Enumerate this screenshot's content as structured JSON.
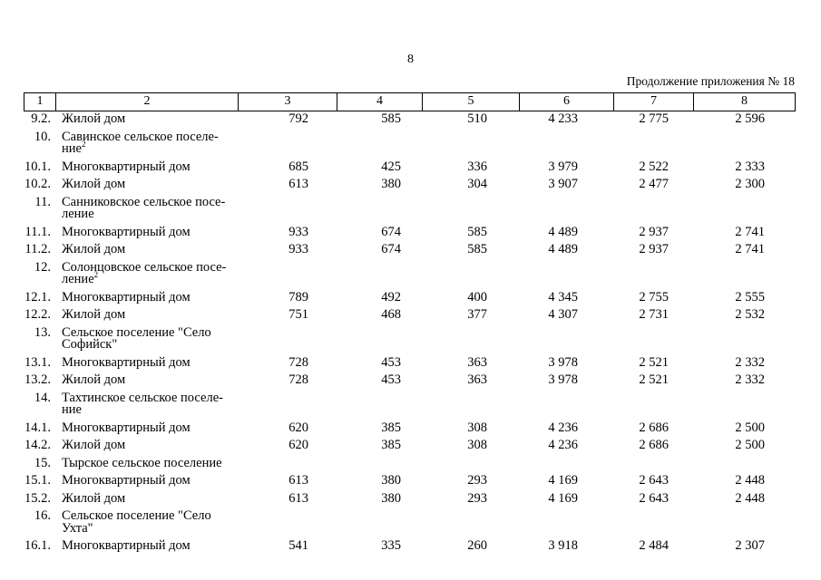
{
  "page": {
    "number": "8",
    "continuation_note": "Продолжение приложения № 18"
  },
  "table": {
    "header_cells": [
      "1",
      "2",
      "3",
      "4",
      "5",
      "6",
      "7",
      "8"
    ],
    "rows": [
      {
        "num": "9.2.",
        "lines": [
          "Жилой дом"
        ],
        "sup": "",
        "values": [
          "792",
          "585",
          "510",
          "4 233",
          "2 775",
          "2 596"
        ]
      },
      {
        "num": "10.",
        "lines": [
          "Савинское сельское поселе-",
          "ние"
        ],
        "sup": "2",
        "values": []
      },
      {
        "num": "10.1.",
        "lines": [
          "Многоквартирный дом"
        ],
        "sup": "",
        "values": [
          "685",
          "425",
          "336",
          "3 979",
          "2 522",
          "2 333"
        ]
      },
      {
        "num": "10.2.",
        "lines": [
          "Жилой дом"
        ],
        "sup": "",
        "values": [
          "613",
          "380",
          "304",
          "3 907",
          "2 477",
          "2 300"
        ]
      },
      {
        "num": "11.",
        "lines": [
          "Санниковское сельское посе-",
          "ление"
        ],
        "sup": "",
        "values": []
      },
      {
        "num": "11.1.",
        "lines": [
          "Многоквартирный дом"
        ],
        "sup": "",
        "values": [
          "933",
          "674",
          "585",
          "4 489",
          "2 937",
          "2 741"
        ]
      },
      {
        "num": "11.2.",
        "lines": [
          "Жилой дом"
        ],
        "sup": "",
        "values": [
          "933",
          "674",
          "585",
          "4 489",
          "2 937",
          "2 741"
        ]
      },
      {
        "num": "12.",
        "lines": [
          "Солонцовское сельское посе-",
          "ление"
        ],
        "sup": "2",
        "values": []
      },
      {
        "num": "12.1.",
        "lines": [
          "Многоквартирный дом"
        ],
        "sup": "",
        "values": [
          "789",
          "492",
          "400",
          "4 345",
          "2 755",
          "2 555"
        ]
      },
      {
        "num": "12.2.",
        "lines": [
          "Жилой дом"
        ],
        "sup": "",
        "values": [
          "751",
          "468",
          "377",
          "4 307",
          "2 731",
          "2 532"
        ]
      },
      {
        "num": "13.",
        "lines": [
          "Сельское поселение \"Село",
          "Софийск\""
        ],
        "sup": "",
        "values": []
      },
      {
        "num": "13.1.",
        "lines": [
          "Многоквартирный дом"
        ],
        "sup": "",
        "values": [
          "728",
          "453",
          "363",
          "3 978",
          "2 521",
          "2 332"
        ]
      },
      {
        "num": "13.2.",
        "lines": [
          "Жилой дом"
        ],
        "sup": "",
        "values": [
          "728",
          "453",
          "363",
          "3 978",
          "2 521",
          "2 332"
        ]
      },
      {
        "num": "14.",
        "lines": [
          "Тахтинское сельское поселе-",
          "ние"
        ],
        "sup": "",
        "values": []
      },
      {
        "num": "14.1.",
        "lines": [
          "Многоквартирный дом"
        ],
        "sup": "",
        "values": [
          "620",
          "385",
          "308",
          "4 236",
          "2 686",
          "2 500"
        ]
      },
      {
        "num": "14.2.",
        "lines": [
          "Жилой дом"
        ],
        "sup": "",
        "values": [
          "620",
          "385",
          "308",
          "4 236",
          "2 686",
          "2 500"
        ]
      },
      {
        "num": "15.",
        "lines": [
          "Тырское сельское поселение"
        ],
        "sup": "",
        "values": []
      },
      {
        "num": "15.1.",
        "lines": [
          "Многоквартирный дом"
        ],
        "sup": "",
        "values": [
          "613",
          "380",
          "293",
          "4 169",
          "2 643",
          "2 448"
        ]
      },
      {
        "num": "15.2.",
        "lines": [
          "Жилой дом"
        ],
        "sup": "",
        "values": [
          "613",
          "380",
          "293",
          "4 169",
          "2 643",
          "2 448"
        ]
      },
      {
        "num": "16.",
        "lines": [
          "Сельское поселение \"Село",
          "Ухта\""
        ],
        "sup": "",
        "values": []
      },
      {
        "num": "16.1.",
        "lines": [
          "Многоквартирный дом"
        ],
        "sup": "",
        "values": [
          "541",
          "335",
          "260",
          "3 918",
          "2 484",
          "2 307"
        ]
      }
    ]
  }
}
